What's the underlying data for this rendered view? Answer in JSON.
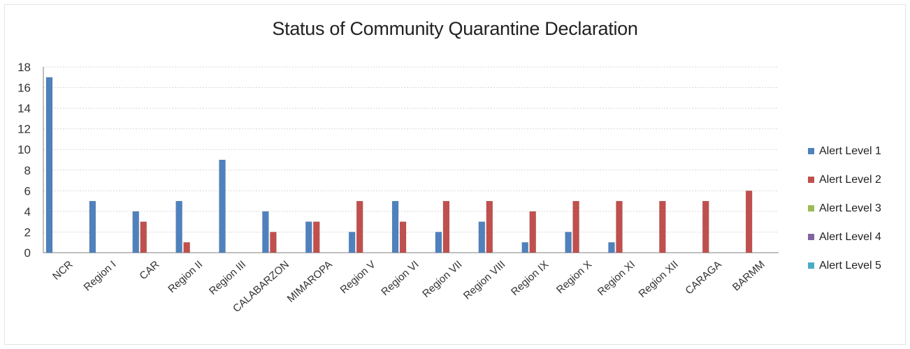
{
  "chart_data": {
    "type": "bar",
    "title": "Status of Community Quarantine Declaration",
    "xlabel": "",
    "ylabel": "",
    "ylim": [
      0,
      18
    ],
    "yticks": [
      0,
      2,
      4,
      6,
      8,
      10,
      12,
      14,
      16,
      18
    ],
    "grid": true,
    "legend_position": "right",
    "categories": [
      "NCR",
      "Region I",
      "CAR",
      "Region II",
      "Region III",
      "CALABARZON",
      "MIMAROPA",
      "Region V",
      "Region VI",
      "Region VII",
      "Region VIII",
      "Region IX",
      "Region X",
      "Region XI",
      "Region XII",
      "CARAGA",
      "BARMM"
    ],
    "series": [
      {
        "name": "Alert Level 1",
        "color": "#4f81bd",
        "values": [
          17,
          5,
          4,
          5,
          9,
          4,
          3,
          2,
          5,
          2,
          3,
          1,
          2,
          1,
          0,
          0,
          0
        ]
      },
      {
        "name": "Alert Level 2",
        "color": "#c0504d",
        "values": [
          0,
          0,
          3,
          1,
          0,
          2,
          3,
          5,
          3,
          5,
          5,
          4,
          5,
          5,
          5,
          5,
          6
        ]
      },
      {
        "name": "Alert Level 3",
        "color": "#9bbb59",
        "values": [
          0,
          0,
          0,
          0,
          0,
          0,
          0,
          0,
          0,
          0,
          0,
          0,
          0,
          0,
          0,
          0,
          0
        ]
      },
      {
        "name": "Alert Level 4",
        "color": "#8064a2",
        "values": [
          0,
          0,
          0,
          0,
          0,
          0,
          0,
          0,
          0,
          0,
          0,
          0,
          0,
          0,
          0,
          0,
          0
        ]
      },
      {
        "name": "Alert Level 5",
        "color": "#4bacc6",
        "values": [
          0,
          0,
          0,
          0,
          0,
          0,
          0,
          0,
          0,
          0,
          0,
          0,
          0,
          0,
          0,
          0,
          0
        ]
      }
    ]
  }
}
